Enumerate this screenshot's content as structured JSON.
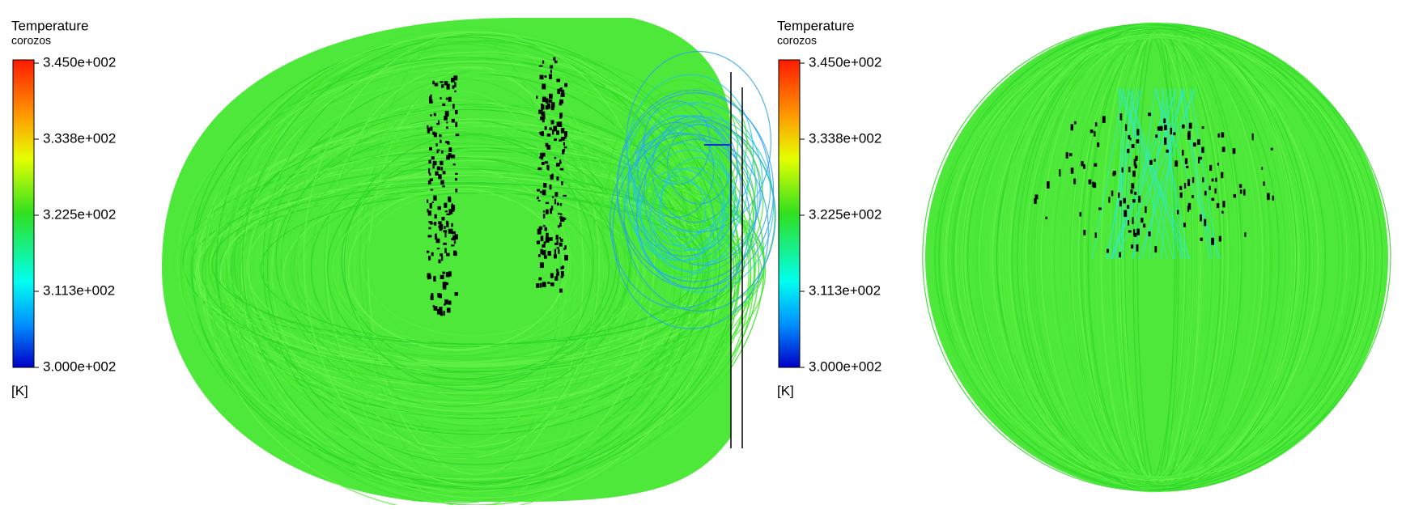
{
  "legends": [
    {
      "title": "Temperature",
      "subtitle": "corozos",
      "ticks": [
        "3.450e+002",
        "3.338e+002",
        "3.225e+002",
        "3.113e+002",
        "3.000e+002"
      ],
      "unit": "[K]"
    },
    {
      "title": "Temperature",
      "subtitle": "corozos",
      "ticks": [
        "3.450e+002",
        "3.338e+002",
        "3.225e+002",
        "3.113e+002",
        "3.000e+002"
      ],
      "unit": "[K]"
    }
  ]
}
